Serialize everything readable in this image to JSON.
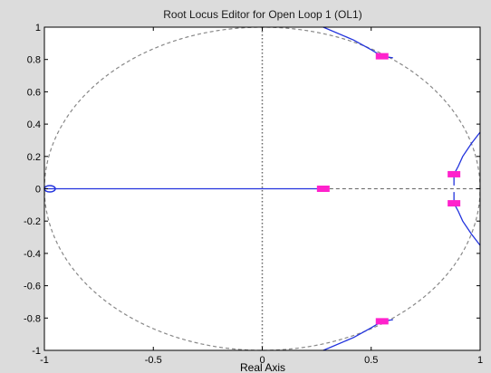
{
  "chart_data": {
    "type": "scatter",
    "title": "Root Locus Editor for Open Loop 1 (OL1)",
    "xlabel": "Real Axis",
    "ylabel": "",
    "xlim": [
      -1,
      1
    ],
    "ylim": [
      -1,
      1
    ],
    "xticks": [
      "-1",
      "-0.5",
      "0",
      "0.5",
      "1"
    ],
    "xtick_values": [
      -1,
      -0.5,
      0,
      0.5,
      1
    ],
    "yticks": [
      "1",
      "0.8",
      "0.6",
      "0.4",
      "0.2",
      "0",
      "-0.2",
      "-0.4",
      "-0.6",
      "-0.8",
      "-1"
    ],
    "ytick_values": [
      1,
      0.8,
      0.6,
      0.4,
      0.2,
      0,
      -0.2,
      -0.4,
      -0.6,
      -0.8,
      -1
    ],
    "grid": false,
    "unit_circle": true,
    "zeros": [
      {
        "x": -1.0,
        "y": 0
      }
    ],
    "closed_loop_poles": [
      {
        "x": 0.28,
        "y": 0
      },
      {
        "x": 0.55,
        "y": 0.82
      },
      {
        "x": 0.55,
        "y": -0.82
      },
      {
        "x": 0.88,
        "y": 0.09
      },
      {
        "x": 0.88,
        "y": -0.09
      }
    ],
    "locus_branches": [
      {
        "points": [
          [
            -1.0,
            0
          ],
          [
            0.28,
            0
          ]
        ]
      },
      {
        "points": [
          [
            0.28,
            0
          ],
          [
            1.0,
            0
          ]
        ],
        "style": "dashed"
      },
      {
        "points": [
          [
            0.28,
            1.0
          ],
          [
            0.42,
            0.92
          ],
          [
            0.5,
            0.86
          ],
          [
            0.55,
            0.82
          ],
          [
            0.6,
            0.81
          ]
        ]
      },
      {
        "points": [
          [
            0.28,
            -1.0
          ],
          [
            0.42,
            -0.92
          ],
          [
            0.5,
            -0.86
          ],
          [
            0.55,
            -0.82
          ],
          [
            0.6,
            -0.81
          ]
        ]
      },
      {
        "points": [
          [
            1.0,
            0.35
          ],
          [
            0.96,
            0.28
          ],
          [
            0.92,
            0.2
          ],
          [
            0.9,
            0.14
          ],
          [
            0.88,
            0.09
          ],
          [
            0.88,
            0.02
          ]
        ]
      },
      {
        "points": [
          [
            1.0,
            -0.35
          ],
          [
            0.96,
            -0.28
          ],
          [
            0.92,
            -0.2
          ],
          [
            0.9,
            -0.14
          ],
          [
            0.88,
            -0.09
          ],
          [
            0.88,
            -0.02
          ]
        ]
      }
    ],
    "colors": {
      "locus": "#2233dd",
      "pole_marker": "#ff22cc",
      "zero_marker": "#2233dd",
      "circle": "#888888",
      "axis_line": "#666666"
    }
  }
}
